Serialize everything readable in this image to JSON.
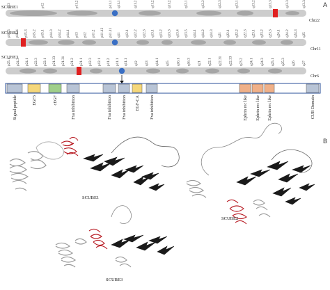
{
  "panels": {
    "a": "A",
    "b": "B"
  },
  "genes": [
    "SCUBE1",
    "SCUBE2",
    "SCUBE3"
  ],
  "chromosomes": [
    {
      "name": "Chr22",
      "bands_p": [
        "p13",
        "p12",
        "p11.2",
        "p11.1"
      ],
      "bands_q": [
        "q11.1",
        "q11.21",
        "q11.22",
        "q11.23",
        "q12.1",
        "q12.2",
        "q12.3",
        "q13.1",
        "q13.2",
        "q13.31",
        "q13.32",
        "q13.33"
      ]
    },
    {
      "name": "Chr11",
      "bands_p": [
        "p15.5",
        "p15.4",
        "p15.3",
        "p15.2",
        "p15.1",
        "p14.3",
        "p14.2",
        "p14.1",
        "p13",
        "p12",
        "p11.2",
        "p11.12",
        "p11.11"
      ],
      "bands_q": [
        "q11",
        "q12.1",
        "q12.2",
        "q12.3",
        "q13.1",
        "q13.2",
        "q13.3",
        "q13.4",
        "q13.5",
        "q14.1",
        "q14.2",
        "q14.3",
        "q21",
        "q22.1",
        "q22.2",
        "q22.3",
        "q23.1",
        "q23.2",
        "q23.3",
        "q24.1",
        "q24.2",
        "q24.3",
        "q25"
      ]
    },
    {
      "name": "Chr6",
      "bands_p": [
        "p25.1",
        "p24.3",
        "p24.1",
        "p22.3",
        "p22.1",
        "p21.33",
        "p21.31",
        "p21.2",
        "p21.1",
        "p12.3",
        "p12.1",
        "p11.2",
        "p11.1"
      ],
      "bands_q": [
        "q11.1",
        "q12",
        "q13",
        "q14.1",
        "q15",
        "q16.1",
        "q16.3",
        "q21",
        "q22.1",
        "q22.31",
        "q22.33",
        "q23.2",
        "q24.1",
        "q24.3",
        "q25.1",
        "q25.3",
        "q26",
        "q27"
      ]
    }
  ],
  "domains": [
    {
      "label": "Signal peptide",
      "color": "#b8c4d6"
    },
    {
      "label": "EGF3",
      "color": "#f5d77a"
    },
    {
      "label": "cEGF",
      "color": "#9fcf8a"
    },
    {
      "label": "Fxa inhibition",
      "color": "#b8c4d6"
    },
    {
      "label": "Fxa inhibition",
      "color": "#b8c4d6"
    },
    {
      "label": "Fxa inhibition",
      "color": "#b8c4d6"
    },
    {
      "label": "EGF-CA",
      "color": "#f5d77a"
    },
    {
      "label": "Fxa inhibition",
      "color": "#b8c4d6"
    },
    {
      "label": "Ephrin rec like",
      "color": "#f0b088"
    },
    {
      "label": "Ephrin rec like",
      "color": "#f0b088"
    },
    {
      "label": "Ephrin rec like",
      "color": "#f0b088"
    },
    {
      "label": "CUB Domain",
      "color": "#b8c4d6"
    }
  ],
  "structures": [
    {
      "label": "SCUBE1"
    },
    {
      "label": "SCUBE2"
    },
    {
      "label": "SCUBE3"
    }
  ],
  "colors": {
    "chromosome": "#cdcdcd",
    "band_dark": "#9a9a9a",
    "centromere": "#3a6fc4",
    "gene_locus": "#e02020",
    "domain_border": "#2a4f9a",
    "helix_highlight": "#b81c24"
  }
}
